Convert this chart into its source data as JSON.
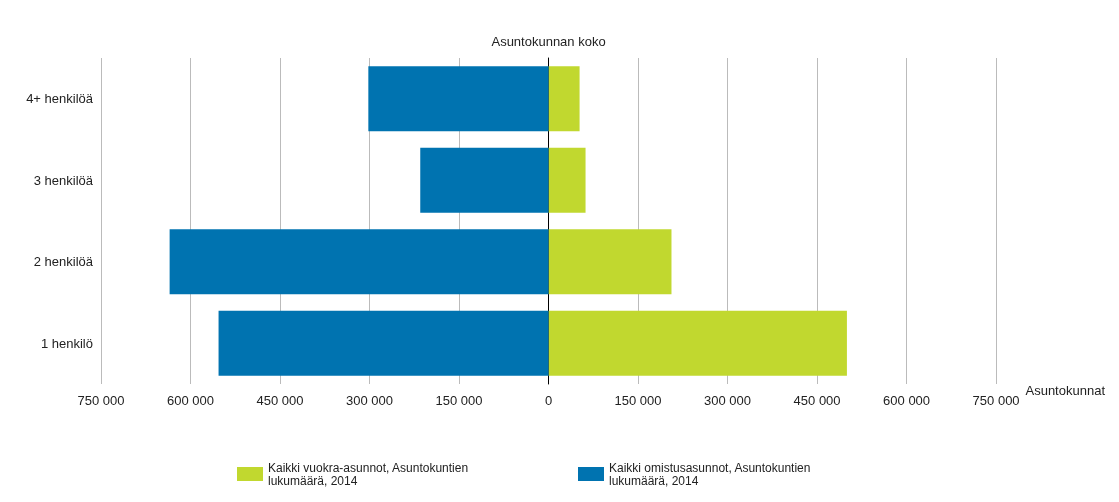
{
  "chart_data": {
    "type": "bar",
    "orientation": "horizontal",
    "stacked": true,
    "xlabel": "Asuntokunnat",
    "ylabel": "Asuntokunnan koko",
    "categories": [
      "4+ henkilöä",
      "3 henkilöä",
      "2 henkilöä",
      "1 henkilö"
    ],
    "series": [
      {
        "name": "Kaikki vuokra-asunnot, Asuntokuntien lukumäärä, 2014",
        "color": "#c1d82f",
        "values": [
          52000,
          62000,
          206000,
          500000
        ]
      },
      {
        "name": "Kaikki omistusasunnot, Asuntokuntien lukumäärä, 2014",
        "color": "#0073b0",
        "values": [
          -302000,
          -215000,
          -635000,
          -553000
        ]
      }
    ],
    "xlim": [
      -750000,
      750000
    ],
    "xticks": [
      {
        "value": -750000,
        "label": "750 000"
      },
      {
        "value": -600000,
        "label": "600 000"
      },
      {
        "value": -450000,
        "label": "450 000"
      },
      {
        "value": -300000,
        "label": "300 000"
      },
      {
        "value": -150000,
        "label": "150 000"
      },
      0,
      {
        "value": 150000,
        "label": "150 000"
      },
      {
        "value": 300000,
        "label": "300 000"
      },
      {
        "value": 450000,
        "label": "450 000"
      },
      {
        "value": 600000,
        "label": "600 000"
      },
      {
        "value": 750000,
        "label": "750 000"
      }
    ],
    "grid": "x",
    "legend": "bottom"
  }
}
